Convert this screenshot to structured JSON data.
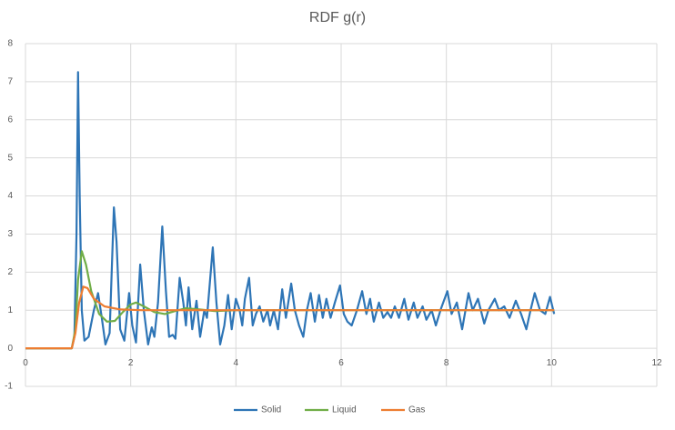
{
  "chart_data": {
    "type": "line",
    "title": "RDF g(r)",
    "xlim": [
      0,
      12
    ],
    "xticks": [
      0,
      2,
      4,
      6,
      8,
      10,
      12
    ],
    "ylim": [
      -1,
      8
    ],
    "yticks": [
      -1,
      0,
      1,
      2,
      3,
      4,
      5,
      6,
      7,
      8
    ],
    "grid": true,
    "legend": "bottom",
    "series": [
      {
        "name": "Solid",
        "color": "#2e75b6",
        "x": [
          0,
          0.88,
          0.93,
          0.97,
          1.0,
          1.03,
          1.07,
          1.12,
          1.2,
          1.3,
          1.38,
          1.45,
          1.52,
          1.6,
          1.68,
          1.73,
          1.8,
          1.88,
          1.97,
          2.03,
          2.1,
          2.18,
          2.25,
          2.33,
          2.4,
          2.45,
          2.52,
          2.6,
          2.67,
          2.73,
          2.8,
          2.85,
          2.93,
          3.0,
          3.05,
          3.1,
          3.17,
          3.25,
          3.32,
          3.4,
          3.45,
          3.56,
          3.63,
          3.7,
          3.78,
          3.85,
          3.92,
          4.0,
          4.07,
          4.12,
          4.17,
          4.25,
          4.32,
          4.38,
          4.45,
          4.52,
          4.6,
          4.65,
          4.72,
          4.8,
          4.88,
          4.95,
          5.05,
          5.12,
          5.2,
          5.28,
          5.35,
          5.42,
          5.5,
          5.58,
          5.65,
          5.72,
          5.8,
          5.88,
          5.98,
          6.05,
          6.12,
          6.2,
          6.3,
          6.4,
          6.48,
          6.55,
          6.62,
          6.72,
          6.8,
          6.88,
          6.95,
          7.02,
          7.1,
          7.2,
          7.28,
          7.38,
          7.45,
          7.55,
          7.62,
          7.72,
          7.8,
          7.9,
          8.02,
          8.1,
          8.2,
          8.3,
          8.42,
          8.5,
          8.6,
          8.72,
          8.8,
          8.92,
          9.0,
          9.1,
          9.2,
          9.32,
          9.42,
          9.52,
          9.6,
          9.68,
          9.78,
          9.88,
          9.97,
          10.05
        ],
        "values": [
          0,
          0,
          0.3,
          3,
          7.25,
          4,
          1,
          0.2,
          0.3,
          1.0,
          1.45,
          0.8,
          0.1,
          0.4,
          3.7,
          2.8,
          0.5,
          0.2,
          1.45,
          0.6,
          0.15,
          2.2,
          1.0,
          0.1,
          0.55,
          0.3,
          1.2,
          3.2,
          1.5,
          0.3,
          0.35,
          0.25,
          1.85,
          1.2,
          0.6,
          1.6,
          0.5,
          1.25,
          0.3,
          1.0,
          0.8,
          2.65,
          1.2,
          0.1,
          0.6,
          1.4,
          0.5,
          1.3,
          1.0,
          0.6,
          1.3,
          1.85,
          0.6,
          0.9,
          1.1,
          0.7,
          1.0,
          0.6,
          1.0,
          0.5,
          1.55,
          0.8,
          1.7,
          1.0,
          0.6,
          0.3,
          1.0,
          1.45,
          0.7,
          1.4,
          0.8,
          1.3,
          0.8,
          1.2,
          1.65,
          0.9,
          0.7,
          0.6,
          1.0,
          1.5,
          0.9,
          1.3,
          0.7,
          1.2,
          0.8,
          0.95,
          0.8,
          1.1,
          0.8,
          1.3,
          0.75,
          1.2,
          0.8,
          1.1,
          0.75,
          1.0,
          0.6,
          1.05,
          1.5,
          0.9,
          1.2,
          0.5,
          1.45,
          1.0,
          1.3,
          0.65,
          1.0,
          1.3,
          1.0,
          1.1,
          0.8,
          1.25,
          0.9,
          0.5,
          1.0,
          1.45,
          1.0,
          0.9,
          1.35,
          0.9
        ]
      },
      {
        "name": "Liquid",
        "color": "#70ad47",
        "x": [
          0,
          0.88,
          0.95,
          1.0,
          1.07,
          1.15,
          1.25,
          1.4,
          1.55,
          1.7,
          1.85,
          2.0,
          2.1,
          2.25,
          2.45,
          2.65,
          2.85,
          3.05,
          3.3,
          3.6,
          4,
          10.05
        ],
        "values": [
          0,
          0,
          0.5,
          1.8,
          2.55,
          2.2,
          1.5,
          0.9,
          0.7,
          0.72,
          0.95,
          1.15,
          1.2,
          1.1,
          0.95,
          0.9,
          0.98,
          1.05,
          1.02,
          0.98,
          1.0,
          1.0
        ]
      },
      {
        "name": "Gas",
        "color": "#ed7d31",
        "x": [
          0,
          0.88,
          0.95,
          1.02,
          1.1,
          1.18,
          1.3,
          1.5,
          1.8,
          2.2,
          10.05
        ],
        "values": [
          0,
          0,
          0.4,
          1.2,
          1.62,
          1.58,
          1.3,
          1.1,
          1.02,
          1.0,
          1.0
        ]
      }
    ]
  }
}
